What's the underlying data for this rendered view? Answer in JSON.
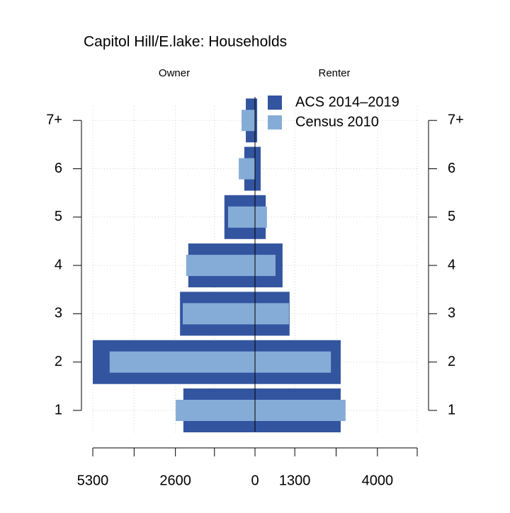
{
  "chart_data": {
    "type": "pyramid",
    "title": "Capitol Hill/E.lake: Households",
    "left_label": "Owner",
    "right_label": "Renter",
    "categories": [
      "1",
      "2",
      "3",
      "4",
      "5",
      "6",
      "7+"
    ],
    "series": [
      {
        "name": "ACS 2014–2019",
        "color": "#3355a0",
        "owner": [
          2340,
          5300,
          2450,
          2180,
          1000,
          350,
          300
        ],
        "renter": [
          2800,
          2800,
          1130,
          900,
          350,
          185,
          70
        ]
      },
      {
        "name": "Census 2010",
        "color": "#85acd6",
        "owner": [
          2590,
          4750,
          2360,
          2250,
          880,
          530,
          440
        ],
        "renter": [
          2960,
          2480,
          1110,
          670,
          390,
          10,
          5
        ]
      }
    ],
    "xlim": [
      0,
      5300
    ],
    "owner_xticks": [
      5300,
      2600,
      0
    ],
    "renter_xticks": [
      1300,
      4000
    ],
    "owner_minor_ticks": [
      3950,
      1325
    ],
    "renter_minor_ticks": [
      2650,
      5300
    ],
    "grid": true
  }
}
